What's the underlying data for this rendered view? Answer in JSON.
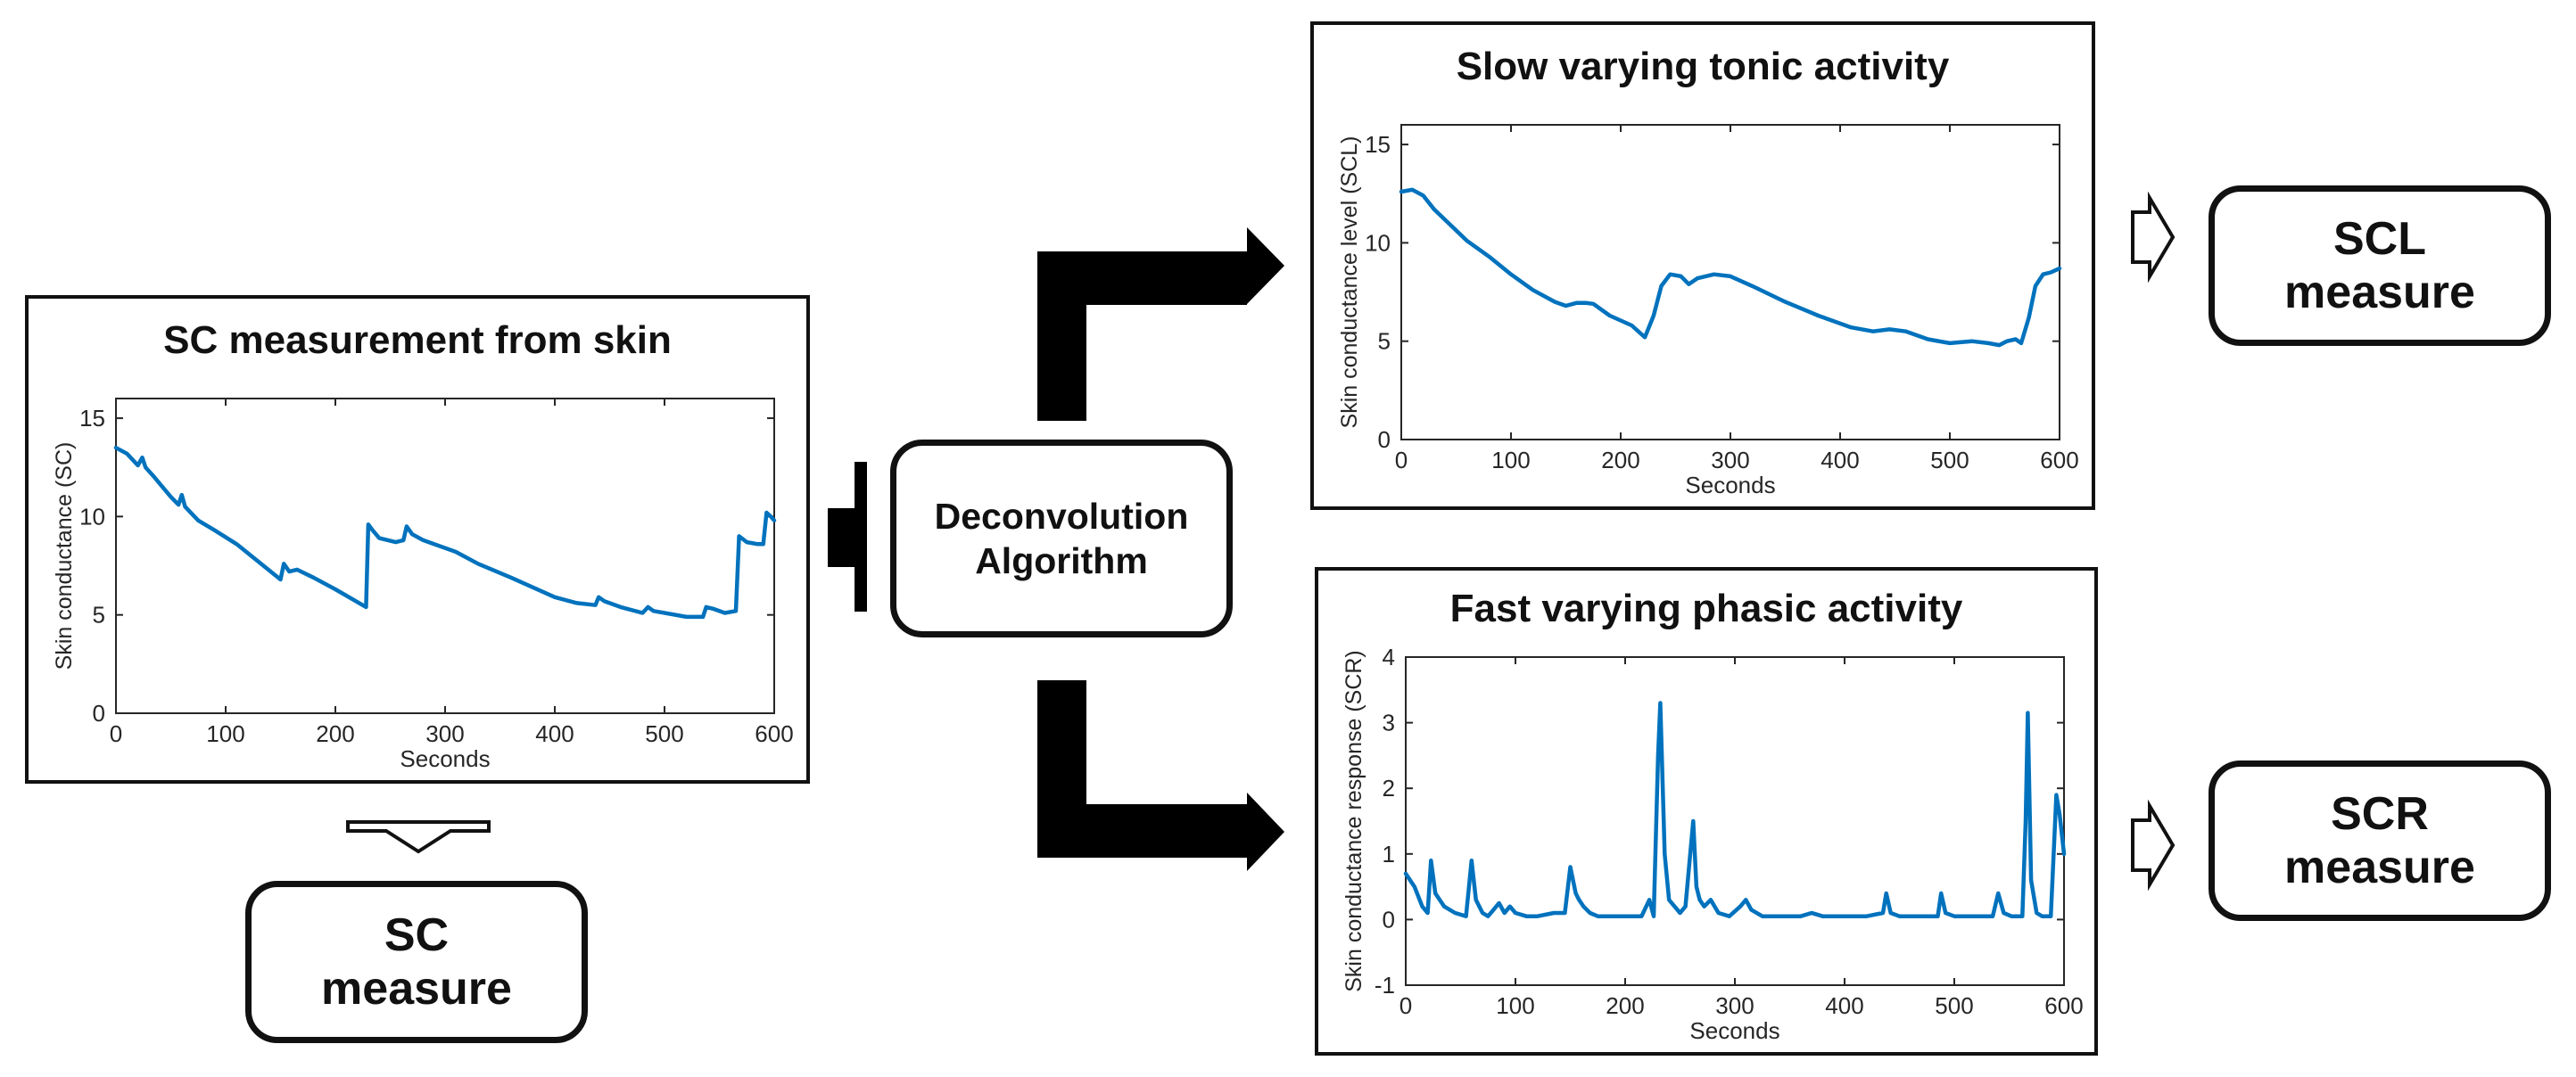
{
  "colors": {
    "line": "#0072BD",
    "frame": "#111111",
    "axis": "#262626",
    "arrow": "#000000"
  },
  "panels": {
    "measurement": {
      "title": "SC measurement from skin"
    },
    "tonic": {
      "title": "Slow varying tonic activity"
    },
    "phasic": {
      "title": "Fast varying phasic activity"
    }
  },
  "nodes": {
    "deconvolution": {
      "label": "Deconvolution\nAlgorithm"
    },
    "sc": {
      "label": "SC\nmeasure"
    },
    "scl": {
      "label": "SCL\nmeasure"
    },
    "scr": {
      "label": "SCR\nmeasure"
    }
  },
  "arrows": [
    {
      "from": "measurement",
      "to": "deconvolution",
      "style": "solid"
    },
    {
      "from": "deconvolution",
      "to": "tonic",
      "style": "solid"
    },
    {
      "from": "deconvolution",
      "to": "phasic",
      "style": "solid"
    },
    {
      "from": "measurement",
      "to": "sc",
      "style": "hollow"
    },
    {
      "from": "tonic",
      "to": "scl",
      "style": "hollow"
    },
    {
      "from": "phasic",
      "to": "scr",
      "style": "hollow"
    }
  ],
  "chart_data": [
    {
      "id": "sc",
      "type": "line",
      "title": "SC measurement from skin",
      "xlabel": "Seconds",
      "ylabel": "Skin conductance (SC)",
      "xlim": [
        0,
        600
      ],
      "ylim": [
        0,
        16
      ],
      "xticks": [
        0,
        100,
        200,
        300,
        400,
        500,
        600
      ],
      "yticks": [
        0,
        5,
        10,
        15
      ],
      "grid": false,
      "series": [
        {
          "name": "SC",
          "x": [
            0,
            10,
            20,
            24,
            27,
            35,
            50,
            57,
            60,
            63,
            75,
            90,
            110,
            130,
            150,
            153,
            158,
            165,
            180,
            200,
            228,
            230,
            234,
            240,
            255,
            262,
            265,
            270,
            280,
            310,
            330,
            360,
            380,
            400,
            420,
            437,
            440,
            445,
            460,
            480,
            485,
            490,
            520,
            535,
            538,
            545,
            555,
            565,
            568,
            575,
            585,
            590,
            593,
            597,
            600
          ],
          "y": [
            13.5,
            13.2,
            12.6,
            13.0,
            12.5,
            12.0,
            11.0,
            10.6,
            11.1,
            10.5,
            9.8,
            9.3,
            8.6,
            7.7,
            6.8,
            7.6,
            7.2,
            7.3,
            6.9,
            6.3,
            5.4,
            9.6,
            9.3,
            8.9,
            8.7,
            8.8,
            9.5,
            9.1,
            8.8,
            8.2,
            7.6,
            6.9,
            6.4,
            5.9,
            5.6,
            5.5,
            5.9,
            5.7,
            5.4,
            5.1,
            5.4,
            5.2,
            4.9,
            4.9,
            5.4,
            5.3,
            5.1,
            5.2,
            9.0,
            8.7,
            8.6,
            8.6,
            10.2,
            10.0,
            9.8
          ]
        }
      ]
    },
    {
      "id": "scl",
      "type": "line",
      "title": "Slow varying tonic activity",
      "xlabel": "Seconds",
      "ylabel": "Skin conductance level (SCL)",
      "xlim": [
        0,
        600
      ],
      "ylim": [
        0,
        16
      ],
      "xticks": [
        0,
        100,
        200,
        300,
        400,
        500,
        600
      ],
      "yticks": [
        0,
        5,
        10,
        15
      ],
      "grid": false,
      "series": [
        {
          "name": "SCL",
          "x": [
            0,
            10,
            20,
            30,
            45,
            60,
            80,
            100,
            120,
            140,
            150,
            160,
            168,
            175,
            190,
            210,
            222,
            230,
            237,
            245,
            255,
            262,
            270,
            285,
            300,
            320,
            350,
            380,
            410,
            430,
            445,
            460,
            480,
            500,
            520,
            535,
            545,
            552,
            560,
            565,
            572,
            578,
            585,
            592,
            600
          ],
          "y": [
            12.6,
            12.7,
            12.4,
            11.7,
            10.9,
            10.1,
            9.3,
            8.4,
            7.6,
            7.0,
            6.8,
            6.95,
            6.95,
            6.9,
            6.3,
            5.8,
            5.2,
            6.3,
            7.8,
            8.4,
            8.3,
            7.9,
            8.2,
            8.4,
            8.3,
            7.8,
            7.0,
            6.3,
            5.7,
            5.5,
            5.6,
            5.5,
            5.1,
            4.9,
            5.0,
            4.9,
            4.8,
            5.0,
            5.1,
            4.9,
            6.2,
            7.8,
            8.4,
            8.5,
            8.7
          ]
        }
      ]
    },
    {
      "id": "scr",
      "type": "line",
      "title": "Fast varying phasic activity",
      "xlabel": "Seconds",
      "ylabel": "Skin conductance response (SCR)",
      "xlim": [
        0,
        600
      ],
      "ylim": [
        -1,
        4
      ],
      "xticks": [
        0,
        100,
        200,
        300,
        400,
        500,
        600
      ],
      "yticks": [
        -1,
        0,
        1,
        2,
        3,
        4
      ],
      "grid": false,
      "series": [
        {
          "name": "SCR",
          "x": [
            0,
            8,
            15,
            20,
            23,
            27,
            35,
            45,
            55,
            60,
            64,
            70,
            75,
            80,
            85,
            90,
            95,
            100,
            110,
            120,
            135,
            145,
            150,
            155,
            158,
            162,
            168,
            175,
            190,
            205,
            215,
            222,
            226,
            230,
            232,
            236,
            240,
            245,
            250,
            255,
            262,
            265,
            268,
            272,
            278,
            285,
            295,
            305,
            310,
            315,
            325,
            340,
            360,
            370,
            380,
            400,
            420,
            435,
            438,
            442,
            450,
            470,
            485,
            488,
            492,
            500,
            520,
            535,
            540,
            545,
            552,
            557,
            562,
            565,
            567,
            570,
            575,
            580,
            588,
            593,
            596,
            600
          ],
          "y": [
            0.7,
            0.5,
            0.2,
            0.1,
            0.9,
            0.4,
            0.2,
            0.1,
            0.05,
            0.9,
            0.3,
            0.1,
            0.05,
            0.15,
            0.25,
            0.1,
            0.2,
            0.1,
            0.05,
            0.05,
            0.1,
            0.1,
            0.8,
            0.4,
            0.3,
            0.2,
            0.1,
            0.05,
            0.05,
            0.05,
            0.05,
            0.3,
            0.05,
            2.5,
            3.3,
            1.0,
            0.3,
            0.2,
            0.1,
            0.2,
            1.5,
            0.5,
            0.3,
            0.2,
            0.3,
            0.1,
            0.05,
            0.2,
            0.3,
            0.15,
            0.05,
            0.05,
            0.05,
            0.1,
            0.05,
            0.05,
            0.05,
            0.1,
            0.4,
            0.1,
            0.05,
            0.05,
            0.05,
            0.4,
            0.1,
            0.05,
            0.05,
            0.05,
            0.4,
            0.1,
            0.05,
            0.05,
            0.05,
            1.5,
            3.15,
            0.6,
            0.1,
            0.05,
            0.05,
            1.9,
            1.6,
            1.0
          ]
        }
      ]
    }
  ]
}
